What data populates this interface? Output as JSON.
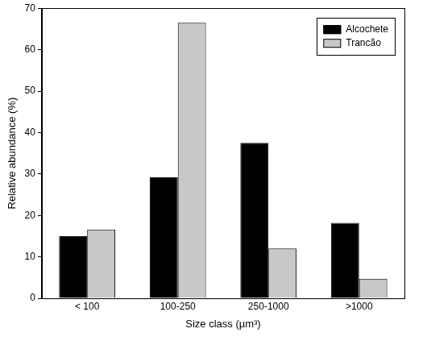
{
  "chart_data": {
    "type": "bar",
    "categories": [
      "< 100",
      "100-250",
      "250-1000",
      ">1000"
    ],
    "series": [
      {
        "name": "Alcochete",
        "color": "#000000",
        "values": [
          15,
          29.2,
          37.5,
          18.2
        ]
      },
      {
        "name": "Trancão",
        "color": "#c8c8c8",
        "values": [
          16.6,
          66.5,
          12,
          4.7
        ]
      }
    ],
    "x_label": "Size class (µm³)",
    "y_label": "Relative abundance (%)",
    "ylim": [
      0,
      70
    ],
    "yticks": [
      0,
      10,
      20,
      30,
      40,
      50,
      60,
      70
    ],
    "grid": false,
    "legend": "upper right"
  }
}
